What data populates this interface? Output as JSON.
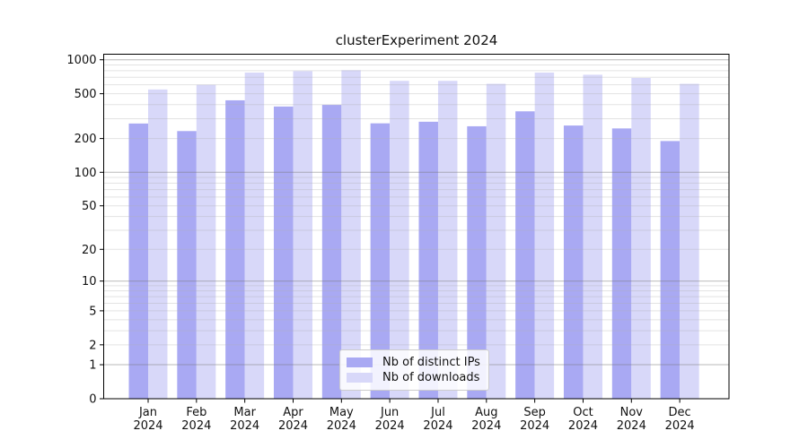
{
  "chart_data": {
    "type": "bar",
    "title": "clusterExperiment 2024",
    "yscale": "log1p",
    "categories": [
      "Jan",
      "Feb",
      "Mar",
      "Apr",
      "May",
      "Jun",
      "Jul",
      "Aug",
      "Sep",
      "Oct",
      "Nov",
      "Dec"
    ],
    "year_label": "2024",
    "series": [
      {
        "name": "Nb of distinct IPs",
        "color": "#a9a9f3",
        "values": [
          272,
          233,
          437,
          385,
          398,
          273,
          282,
          257,
          349,
          261,
          246,
          190
        ]
      },
      {
        "name": "Nb of downloads",
        "color": "#d8d8f9",
        "values": [
          545,
          600,
          770,
          793,
          808,
          650,
          650,
          612,
          770,
          737,
          690,
          612
        ]
      }
    ],
    "yticks": [
      0,
      1,
      2,
      5,
      10,
      20,
      50,
      100,
      200,
      500,
      1000
    ],
    "ylim": [
      0,
      1120
    ],
    "grid": "on",
    "legend_position": "bottom-center",
    "xlabel": "",
    "ylabel": ""
  },
  "style_colors": {
    "axis": "#000000",
    "text": "#111111",
    "grid_minor": "#b0b0b0",
    "grid_major": "#777777",
    "legend_border": "#cccccc"
  }
}
